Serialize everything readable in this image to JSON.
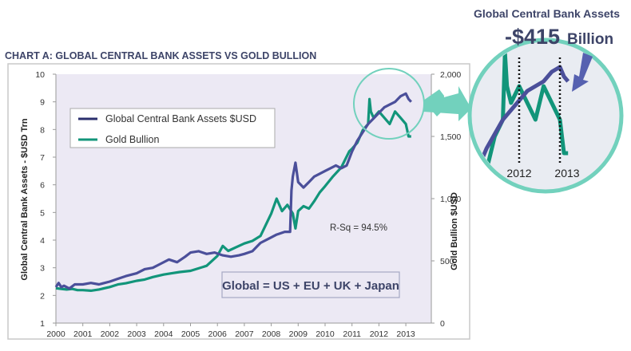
{
  "chart_data": {
    "type": "line",
    "title": "CHART A: GLOBAL CENTRAL BANK ASSETS VS GOLD BULLION",
    "xlabel": "",
    "ylabel": "Global Central Bank Assets - $USD Trn",
    "y2label": "Gold Bullion $USD",
    "x_ticks": [
      "2000",
      "2001",
      "2002",
      "2003",
      "2004",
      "2005",
      "2006",
      "2007",
      "2008",
      "2009",
      "2010",
      "2011",
      "2012",
      "2013"
    ],
    "y_ticks": [
      "1",
      "2",
      "3",
      "4",
      "5",
      "6",
      "7",
      "8",
      "9",
      "10"
    ],
    "y2_ticks": [
      "0",
      "500",
      "1,000",
      "1,500",
      "2,000"
    ],
    "xlim": [
      2000,
      2013.9
    ],
    "ylim": [
      1,
      10
    ],
    "y2lim": [
      0,
      2000
    ],
    "grid": false,
    "legend_position": "top-left",
    "colors": {
      "assets": "#4b4f9a",
      "gold": "#12957a",
      "callout": "#72d1bd",
      "background": "#ece9f4",
      "title": "#3d4468"
    },
    "series": [
      {
        "name": "Global Central Bank Assets $USD",
        "axis": "left",
        "x": [
          2000,
          2000.1,
          2000.2,
          2000.3,
          2000.5,
          2000.7,
          2001,
          2001.3,
          2001.6,
          2002,
          2002.3,
          2002.6,
          2003,
          2003.3,
          2003.6,
          2003.9,
          2004.2,
          2004.5,
          2004.8,
          2005,
          2005.3,
          2005.6,
          2005.9,
          2006.2,
          2006.5,
          2006.8,
          2007,
          2007.3,
          2007.6,
          2007.9,
          2008.2,
          2008.5,
          2008.7,
          2008.75,
          2008.8,
          2008.9,
          2009,
          2009.2,
          2009.4,
          2009.6,
          2009.8,
          2010,
          2010.2,
          2010.4,
          2010.6,
          2010.8,
          2011,
          2011.2,
          2011.4,
          2011.6,
          2011.8,
          2012,
          2012.2,
          2012.4,
          2012.6,
          2012.8,
          2013,
          2013.1,
          2013.2
        ],
        "values": [
          2.3,
          2.45,
          2.3,
          2.35,
          2.25,
          2.4,
          2.4,
          2.45,
          2.4,
          2.5,
          2.6,
          2.7,
          2.8,
          2.95,
          3.0,
          3.15,
          3.3,
          3.2,
          3.4,
          3.55,
          3.6,
          3.5,
          3.55,
          3.45,
          3.4,
          3.45,
          3.5,
          3.6,
          3.9,
          4.05,
          4.2,
          4.3,
          4.3,
          5.8,
          6.3,
          6.8,
          6.1,
          5.9,
          6.1,
          6.3,
          6.4,
          6.5,
          6.6,
          6.7,
          6.6,
          6.7,
          7.2,
          7.6,
          7.9,
          8.2,
          8.4,
          8.6,
          8.8,
          8.9,
          9.0,
          9.2,
          9.3,
          9.1,
          9.0
        ]
      },
      {
        "name": "Gold Bullion",
        "axis": "right",
        "x": [
          2000,
          2000.2,
          2000.4,
          2000.6,
          2000.8,
          2001,
          2001.3,
          2001.6,
          2002,
          2002.3,
          2002.6,
          2003,
          2003.3,
          2003.6,
          2004,
          2004.3,
          2004.6,
          2005,
          2005.3,
          2005.6,
          2006,
          2006.2,
          2006.4,
          2006.7,
          2007,
          2007.3,
          2007.6,
          2008,
          2008.2,
          2008.4,
          2008.6,
          2008.8,
          2008.9,
          2009,
          2009.2,
          2009.4,
          2009.6,
          2009.8,
          2010,
          2010.3,
          2010.6,
          2010.9,
          2011,
          2011.2,
          2011.4,
          2011.6,
          2011.65,
          2011.7,
          2011.8,
          2012,
          2012.2,
          2012.4,
          2012.6,
          2012.8,
          2013,
          2013.1,
          2013.2
        ],
        "values": [
          280,
          275,
          270,
          275,
          265,
          265,
          260,
          270,
          290,
          310,
          320,
          340,
          350,
          370,
          390,
          400,
          410,
          420,
          440,
          460,
          540,
          620,
          580,
          610,
          640,
          660,
          700,
          880,
          1000,
          900,
          950,
          880,
          760,
          900,
          940,
          920,
          980,
          1050,
          1100,
          1180,
          1250,
          1380,
          1400,
          1450,
          1550,
          1600,
          1800,
          1700,
          1650,
          1700,
          1650,
          1600,
          1700,
          1650,
          1600,
          1500,
          1500
        ]
      }
    ],
    "annotations": [
      "R-Sq = 94.5%",
      "Global = US + EU + UK + Japan"
    ]
  },
  "legend": {
    "items": [
      {
        "label": "Global Central Bank Assets $USD",
        "color": "#2b2f6e"
      },
      {
        "label": "Gold Bullion",
        "color": "#12957a"
      }
    ]
  },
  "annotations": {
    "rsq": "R-Sq = 94.5%",
    "formula": "Global = US + EU + UK + Japan"
  },
  "callout": {
    "title": "Global Central Bank Assets",
    "amount": "-$415",
    "unit": "Billion",
    "zoom_ticks": [
      "2012",
      "2013"
    ]
  }
}
